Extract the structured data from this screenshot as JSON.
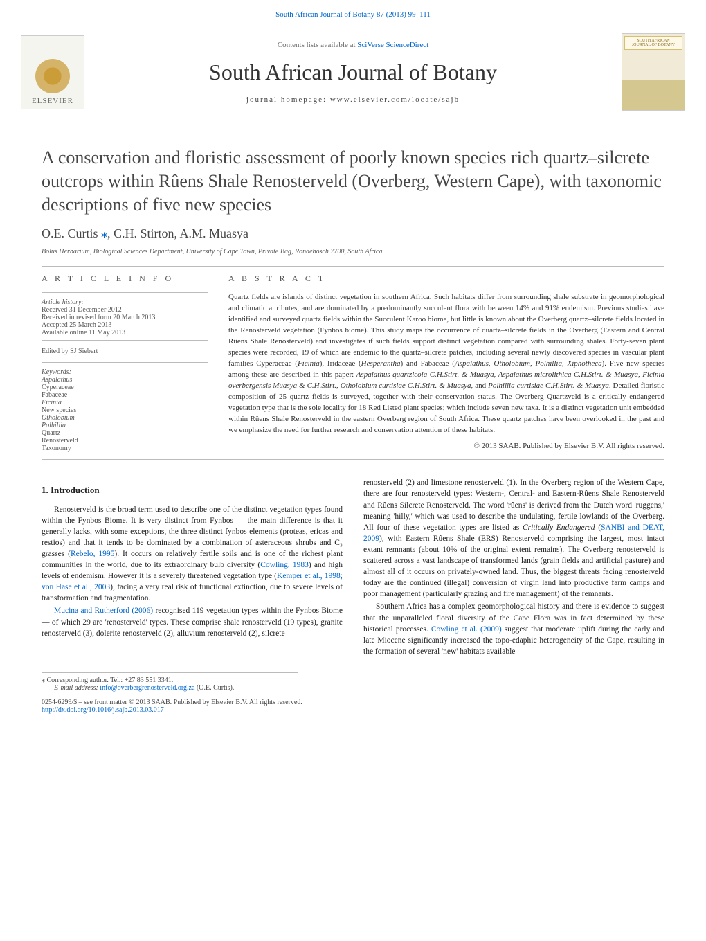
{
  "journal": {
    "top_link": "South African Journal of Botany 87 (2013) 99–111",
    "contents_text": "Contents lists available at ",
    "contents_link": "SciVerse ScienceDirect",
    "name": "South African Journal of Botany",
    "homepage_label": "journal homepage: ",
    "homepage_url": "www.elsevier.com/locate/sajb",
    "publisher": "ELSEVIER",
    "cover_title": "SOUTH AFRICAN JOURNAL OF BOTANY"
  },
  "article": {
    "title": "A conservation and floristic assessment of poorly known species rich quartz–silcrete outcrops within Rûens Shale Renosterveld (Overberg, Western Cape), with taxonomic descriptions of five new species",
    "authors": "O.E. Curtis ",
    "authors_rest": ", C.H. Stirton, A.M. Muasya",
    "star": "⁎",
    "affiliation": "Bolus Herbarium, Biological Sciences Department, University of Cape Town, Private Bag, Rondebosch 7700, South Africa"
  },
  "info": {
    "section_label": "A R T I C L E   I N F O",
    "history_label": "Article history:",
    "received": "Received 31 December 2012",
    "revised": "Received in revised form 20 March 2013",
    "accepted": "Accepted 25 March 2013",
    "online": "Available online 11 May 2013",
    "editor": "Edited by SJ Siebert",
    "keywords_label": "Keywords:",
    "keywords": [
      "Aspalathus",
      "Cyperaceae",
      "Fabaceae",
      "Ficinia",
      "New species",
      "Otholobium",
      "Polhillia",
      "Quartz",
      "Renosterveld",
      "Taxonomy"
    ],
    "italic_kw": {
      "0": true,
      "3": true,
      "5": true,
      "6": true
    }
  },
  "abstract": {
    "label": "A B S T R A C T",
    "text1": "Quartz fields are islands of distinct vegetation in southern Africa. Such habitats differ from surrounding shale substrate in geomorphological and climatic attributes, and are dominated by a predominantly succulent flora with between 14% and 91% endemism. Previous studies have identified and surveyed quartz fields within the Succulent Karoo biome, but little is known about the Overberg quartz–silcrete fields located in the Renosterveld vegetation (Fynbos biome). This study maps the occurrence of quartz–silcrete fields in the Overberg (Eastern and Central Rûens Shale Renosterveld) and investigates if such fields support distinct vegetation compared with surrounding shales. Forty-seven plant species were recorded, 19 of which are endemic to the quartz–silcrete patches, including several newly discovered species in vascular plant families Cyperaceae (",
    "sp1": "Ficinia",
    "text2": "), Iridaceae (",
    "sp2": "Hesperantha",
    "text3": ") and Fabaceae (",
    "sp3": "Aspalathus, Otholobium, Polhillia, Xiphotheca",
    "text4": "). Five new species among these are described in this paper: ",
    "sp4": "Aspalathus quartzicola C.H.Stirt. & Muasya, Aspalathus microlithica C.H.Stirt. & Muasya, Ficinia overbergensis Muasya & C.H.Stirt., Otholobium curtisiae C.H.Stirt. & Muasya",
    "text5": ", and ",
    "sp5": "Polhillia curtisiae C.H.Stirt. & Muasya",
    "text6": ". Detailed floristic composition of 25 quartz fields is surveyed, together with their conservation status. The Overberg Quartzveld is a critically endangered vegetation type that is the sole locality for 18 Red Listed plant species; which include seven new taxa. It is a distinct vegetation unit embedded within Rûens Shale Renosterveld in the eastern Overberg region of South Africa. These quartz patches have been overlooked in the past and we emphasize the need for further research and conservation attention of these habitats.",
    "copyright": "© 2013 SAAB. Published by Elsevier B.V. All rights reserved."
  },
  "body": {
    "intro_heading": "1. Introduction",
    "p1a": "Renosterveld is the broad term used to describe one of the distinct vegetation types found within the Fynbos Biome. It is very distinct from Fynbos — the main difference is that it generally lacks, with some exceptions, the three distinct fynbos elements (proteas, ericas and restios) and that it tends to be dominated by a combination of asteraceous shrubs and C₃ grasses (",
    "p1_ref1": "Rebelo, 1995",
    "p1b": "). It occurs on relatively fertile soils and is one of the richest plant communities in the world, due to its extraordinary bulb diversity (",
    "p1_ref2": "Cowling, 1983",
    "p1c": ") and high levels of endemism. However it is a severely threatened vegetation type (",
    "p1_ref3": "Kemper et al., 1998; von Hase et al., 2003",
    "p1d": "), facing a very real risk of functional extinction, due to severe levels of transformation and fragmentation.",
    "p2_ref1": "Mucina and Rutherford (2006)",
    "p2a": " recognised 119 vegetation types within the Fynbos Biome — of which 29 are 'renosterveld' types. These comprise shale renosterveld (19 types), granite renosterveld (3), dolerite renosterveld (2), alluvium renosterveld (2), silcrete",
    "p3a": "renosterveld (2) and limestone renosterveld (1). In the Overberg region of the Western Cape, there are four renosterveld types: Western-, Central- and Eastern-Rûens Shale Renosterveld and Rûens Silcrete Renosterveld. The word 'rûens' is derived from the Dutch word 'ruggens,' meaning 'hilly,' which was used to describe the undulating, fertile lowlands of the Overberg. All four of these vegetation types are listed as ",
    "p3_em": "Critically Endangered",
    "p3b": " (",
    "p3_ref1": "SANBI and DEAT, 2009",
    "p3c": "), with Eastern Rûens Shale (ERS) Renosterveld comprising the largest, most intact extant remnants (about 10% of the original extent remains). The Overberg renosterveld is scattered across a vast landscape of transformed lands (grain fields and artificial pasture) and almost all of it occurs on privately-owned land. Thus, the biggest threats facing renosterveld today are the continued (illegal) conversion of virgin land into productive farm camps and poor management (particularly grazing and fire management) of the remnants.",
    "p4a": "Southern Africa has a complex geomorphological history and there is evidence to suggest that the unparalleled floral diversity of the Cape Flora was in fact determined by these historical processes. ",
    "p4_ref1": "Cowling et al. (2009)",
    "p4b": " suggest that moderate uplift during the early and late Miocene significantly increased the topo-edaphic heterogeneity of the Cape, resulting in the formation of several 'new' habitats available"
  },
  "footnote": {
    "corresp": "⁎ Corresponding author. Tel.: +27 83 551 3341.",
    "email_label": "E-mail address: ",
    "email": "info@overbergrenosterveld.org.za",
    "email_suffix": " (O.E. Curtis)."
  },
  "doi": {
    "front_matter": "0254-6299/$ – see front matter © 2013 SAAB. Published by Elsevier B.V. All rights reserved.",
    "url": "http://dx.doi.org/10.1016/j.sajb.2013.03.017"
  }
}
